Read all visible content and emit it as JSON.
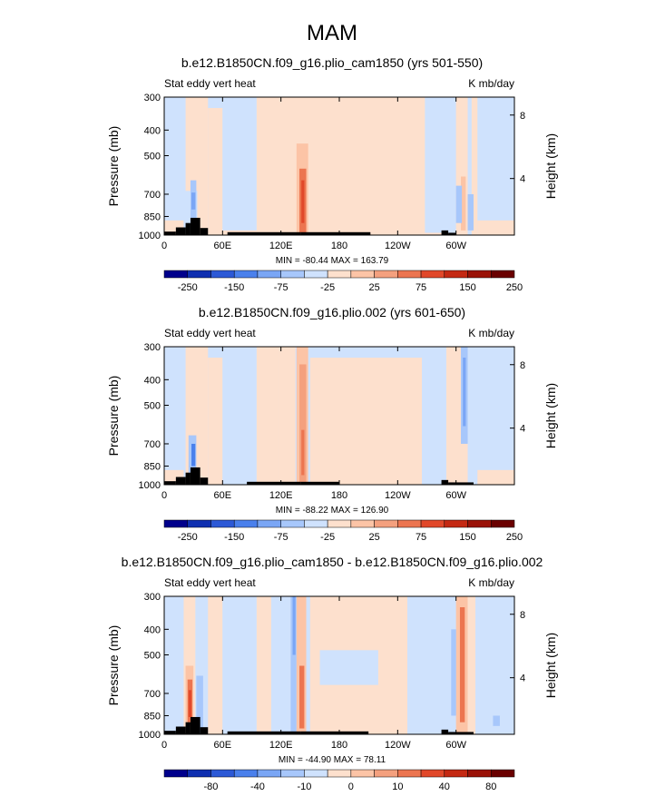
{
  "figure_title": "MAM",
  "chart_data": [
    {
      "type": "heatmap",
      "title": "b.e12.B1850CN.f09_g16.plio_cam1850 (yrs 501-550)",
      "left_label": "Stat eddy vert heat",
      "right_label": "K mb/day",
      "ylabel": "Pressure (mb)",
      "y2label": "Height (km)",
      "x_ticks": [
        "0",
        "60E",
        "120E",
        "180",
        "120W",
        "60W"
      ],
      "y_ticks": [
        "300",
        "400",
        "500",
        "700",
        "850",
        "1000"
      ],
      "y2_ticks": [
        "8",
        "4"
      ],
      "stats": "MIN = -80.44   MAX = 163.79",
      "colorbar_labels": [
        "-250",
        "-150",
        "-75",
        "-25",
        "25",
        "75",
        "150",
        "250"
      ],
      "min": -80.44,
      "max": 163.79
    },
    {
      "type": "heatmap",
      "title": "b.e12.B1850CN.f09_g16.plio.002 (yrs 601-650)",
      "left_label": "Stat eddy vert heat",
      "right_label": "K mb/day",
      "ylabel": "Pressure (mb)",
      "y2label": "Height (km)",
      "x_ticks": [
        "0",
        "60E",
        "120E",
        "180",
        "120W",
        "60W"
      ],
      "y_ticks": [
        "300",
        "400",
        "500",
        "700",
        "850",
        "1000"
      ],
      "y2_ticks": [
        "8",
        "4"
      ],
      "stats": "MIN = -88.22   MAX = 126.90",
      "colorbar_labels": [
        "-250",
        "-150",
        "-75",
        "-25",
        "25",
        "75",
        "150",
        "250"
      ],
      "min": -88.22,
      "max": 126.9
    },
    {
      "type": "heatmap",
      "title": "b.e12.B1850CN.f09_g16.plio_cam1850 - b.e12.B1850CN.f09_g16.plio.002",
      "left_label": "Stat eddy vert heat",
      "right_label": "K mb/day",
      "ylabel": "Pressure (mb)",
      "y2label": "Height (km)",
      "x_ticks": [
        "0",
        "60E",
        "120E",
        "180",
        "120W",
        "60W"
      ],
      "y_ticks": [
        "300",
        "400",
        "500",
        "700",
        "850",
        "1000"
      ],
      "y2_ticks": [
        "8",
        "4"
      ],
      "stats": "MIN = -44.90   MAX = 78.11",
      "colorbar_labels": [
        "-80",
        "-40",
        "-10",
        "0",
        "10",
        "40",
        "80"
      ],
      "min": -44.9,
      "max": 78.11
    }
  ],
  "colors": {
    "palette": [
      "#00008c",
      "#0f2fb0",
      "#2c59d6",
      "#4a80ec",
      "#7aa6f5",
      "#a7c7fb",
      "#cfe2fd",
      "#fde0cd",
      "#fcc4a6",
      "#f4a07e",
      "#ec7550",
      "#e1482a",
      "#c42913",
      "#9a1207",
      "#6a0000"
    ],
    "land": "#000000",
    "frame": "#000000"
  }
}
